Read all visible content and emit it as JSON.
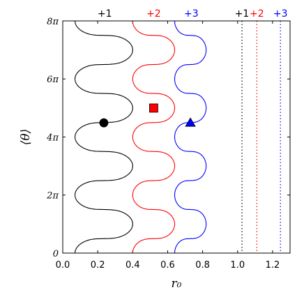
{
  "chart_data": {
    "type": "line",
    "xlabel": "r₀",
    "ylabel": "⟨θ⟩",
    "xlim": [
      0.0,
      1.3
    ],
    "ylim": [
      0,
      25.1327
    ],
    "x_ticks": [
      {
        "value": 0.0,
        "label": "0.0"
      },
      {
        "value": 0.2,
        "label": "0.2"
      },
      {
        "value": 0.4,
        "label": "0.4"
      },
      {
        "value": 0.6,
        "label": "0.6"
      },
      {
        "value": 0.8,
        "label": "0.8"
      },
      {
        "value": 1.0,
        "label": "1.0"
      },
      {
        "value": 1.2,
        "label": "1.2"
      }
    ],
    "y_ticks": [
      {
        "value": 0,
        "label": "0"
      },
      {
        "value": 6.2832,
        "label": "2π"
      },
      {
        "value": 12.5664,
        "label": "4π"
      },
      {
        "value": 18.8496,
        "label": "6π"
      },
      {
        "value": 25.1327,
        "label": "8π"
      }
    ],
    "grid": false,
    "series": [
      {
        "name": "+1",
        "color": "#000000",
        "r_center": 0.235,
        "amplitude": 0.165,
        "shape": "wavy-line",
        "marker": {
          "shape": "circle",
          "x": 0.235,
          "y": 14.1
        }
      },
      {
        "name": "+2",
        "color": "#ff0000",
        "r_center": 0.52,
        "amplitude": 0.12,
        "shape": "wavy-line",
        "marker": {
          "shape": "square",
          "x": 0.52,
          "y": 15.7
        }
      },
      {
        "name": "+3",
        "color": "#0000ff",
        "r_center": 0.73,
        "amplitude": 0.09,
        "shape": "wavy-line",
        "marker": {
          "shape": "triangle",
          "x": 0.73,
          "y": 14.1
        }
      }
    ],
    "vertical_lines": [
      {
        "name": "+1",
        "x": 1.025,
        "color": "#000000",
        "style": "dotted"
      },
      {
        "name": "+2",
        "x": 1.11,
        "color": "#ff0000",
        "style": "dotted"
      },
      {
        "name": "+3",
        "x": 1.245,
        "color": "#0000ff",
        "style": "dotted"
      }
    ],
    "top_labels": [
      {
        "text": "+1",
        "x": 0.24,
        "color": "#000000"
      },
      {
        "text": "+2",
        "x": 0.52,
        "color": "#ff0000"
      },
      {
        "text": "+3",
        "x": 0.735,
        "color": "#0000ff"
      },
      {
        "text": "+1",
        "x": 1.025,
        "color": "#000000"
      },
      {
        "text": "+2",
        "x": 1.11,
        "color": "#ff0000"
      },
      {
        "text": "+3",
        "x": 1.245,
        "color": "#0000ff"
      }
    ]
  }
}
